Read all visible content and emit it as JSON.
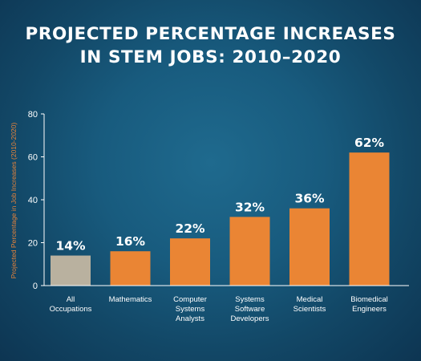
{
  "title_lines": [
    "PROJECTED PERCENTAGE INCREASES",
    "IN STEM JOBS: 2010–2020"
  ],
  "colors": {
    "background": "#185b7e",
    "bar": "#ea8534",
    "bar_highlight": "#b9b19f",
    "axis": "#ffffff",
    "ylabel": "#e8833a"
  },
  "chart_data": {
    "type": "bar",
    "title": "PROJECTED PERCENTAGE INCREASES IN STEM JOBS: 2010–2020",
    "ylabel": "Projected Percentage in Job Increases (2010-2020)",
    "xlabel": "",
    "ylim": [
      0,
      80
    ],
    "yticks": [
      0,
      20,
      40,
      60,
      80
    ],
    "grid": false,
    "categories": [
      [
        "All",
        "Occupations"
      ],
      [
        "Mathematics"
      ],
      [
        "Computer",
        "Systems",
        "Analysts"
      ],
      [
        "Systems",
        "Software",
        "Developers"
      ],
      [
        "Medical",
        "Scientists"
      ],
      [
        "Biomedical",
        "Engineers"
      ]
    ],
    "values": [
      14,
      16,
      22,
      32,
      36,
      62
    ],
    "value_labels": [
      "14%",
      "16%",
      "22%",
      "32%",
      "36%",
      "62%"
    ],
    "highlight_index": 0
  }
}
